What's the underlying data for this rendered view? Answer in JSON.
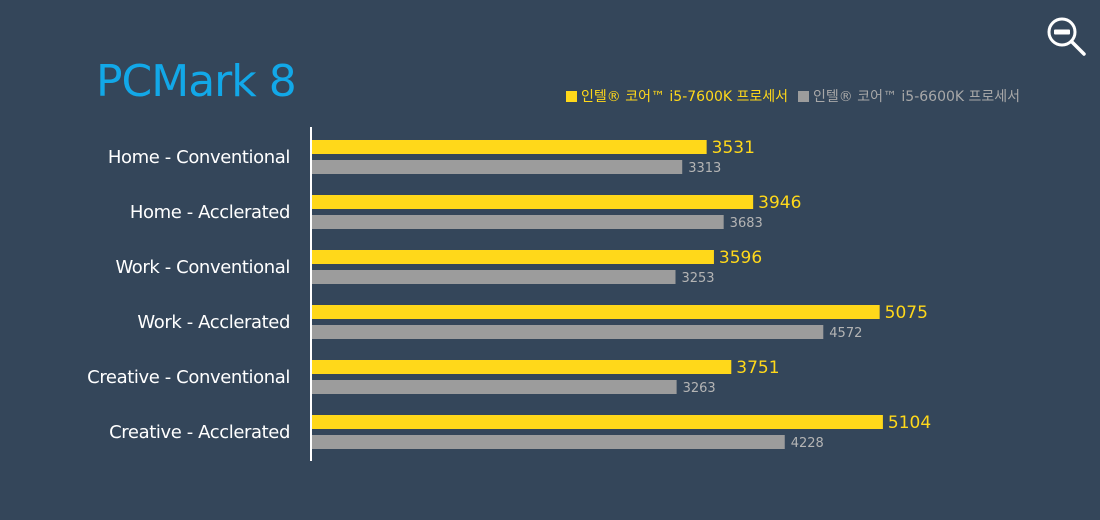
{
  "colors": {
    "background": "#34465a",
    "title": "#12a8e8",
    "series_a": "#ffd81a",
    "series_b": "#9c9c9c"
  },
  "icons": {
    "zoom_out": "zoom-out-icon"
  },
  "chart_data": {
    "type": "bar",
    "orientation": "horizontal",
    "title": "PCMark 8",
    "categories": [
      "Home - Conventional",
      "Home - Acclerated",
      "Work - Conventional",
      "Work - Acclerated",
      "Creative - Conventional",
      "Creative - Acclerated"
    ],
    "series": [
      {
        "name": "인텔® 코어™ i5-7600K 프로세서",
        "values": [
          3531,
          3946,
          3596,
          5075,
          3751,
          5104
        ]
      },
      {
        "name": "인텔® 코어™ i5-6600K 프로세서",
        "values": [
          3313,
          3683,
          3253,
          4572,
          3263,
          4228
        ]
      }
    ],
    "xlim": [
      0,
      7000
    ],
    "grid": false,
    "legend_position": "top-right",
    "data_labels": true
  }
}
